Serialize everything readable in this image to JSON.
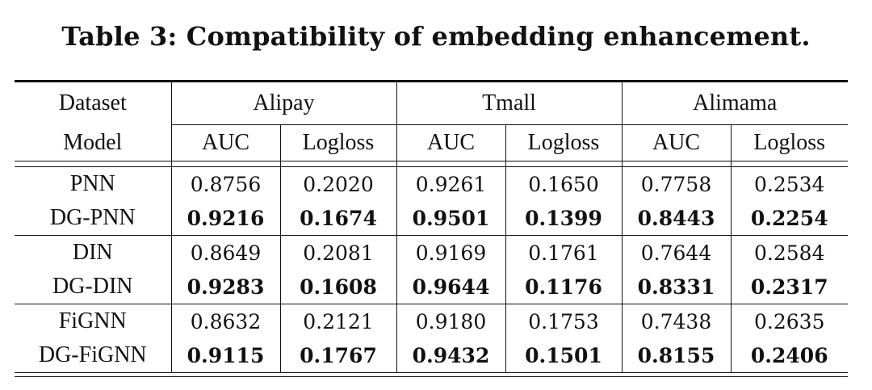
{
  "caption": "Table 3: Compatibility of embedding enhancement.",
  "header": {
    "dataset_label": "Dataset",
    "model_label": "Model",
    "datasets": [
      "Alipay",
      "Tmall",
      "Alimama"
    ],
    "metric_auc": "AUC",
    "metric_logloss": "Logloss"
  },
  "rows": [
    {
      "model": "PNN",
      "values": [
        "0.8756",
        "0.2020",
        "0.9261",
        "0.1650",
        "0.7758",
        "0.2534"
      ],
      "bold": false
    },
    {
      "model": "DG-PNN",
      "values": [
        "0.9216",
        "0.1674",
        "0.9501",
        "0.1399",
        "0.8443",
        "0.2254"
      ],
      "bold": true
    },
    {
      "model": "DIN",
      "values": [
        "0.8649",
        "0.2081",
        "0.9169",
        "0.1761",
        "0.7644",
        "0.2584"
      ],
      "bold": false
    },
    {
      "model": "DG-DIN",
      "values": [
        "0.9283",
        "0.1608",
        "0.9644",
        "0.1176",
        "0.8331",
        "0.2317"
      ],
      "bold": true
    },
    {
      "model": "FiGNN",
      "values": [
        "0.8632",
        "0.2121",
        "0.9180",
        "0.1753",
        "0.7438",
        "0.2635"
      ],
      "bold": false
    },
    {
      "model": "DG-FiGNN",
      "values": [
        "0.9115",
        "0.1767",
        "0.9432",
        "0.1501",
        "0.8155",
        "0.2406"
      ],
      "bold": true
    }
  ]
}
